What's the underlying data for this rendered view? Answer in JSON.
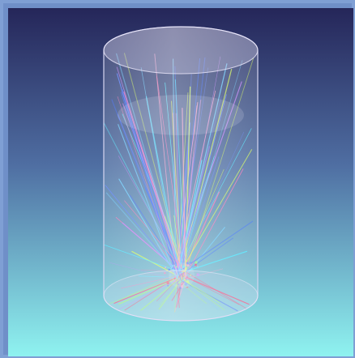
{
  "viewport": {
    "background_top": "#252659",
    "background_bottom": "#8ff3f0",
    "frame_color": "#7f9fd4"
  },
  "object": {
    "name": "transparent-cylinder",
    "fill": "#d8d3ec",
    "opacity": 0.33,
    "edge_color": "#d7d6f1"
  },
  "rays": {
    "colors": [
      "#ff3366",
      "#ff6eb4",
      "#3366ff",
      "#5a7dff",
      "#46e6ff",
      "#99ff66",
      "#d7ff4a",
      "#c77dff",
      "#ff99c8",
      "#66ccff"
    ],
    "count": 110
  }
}
